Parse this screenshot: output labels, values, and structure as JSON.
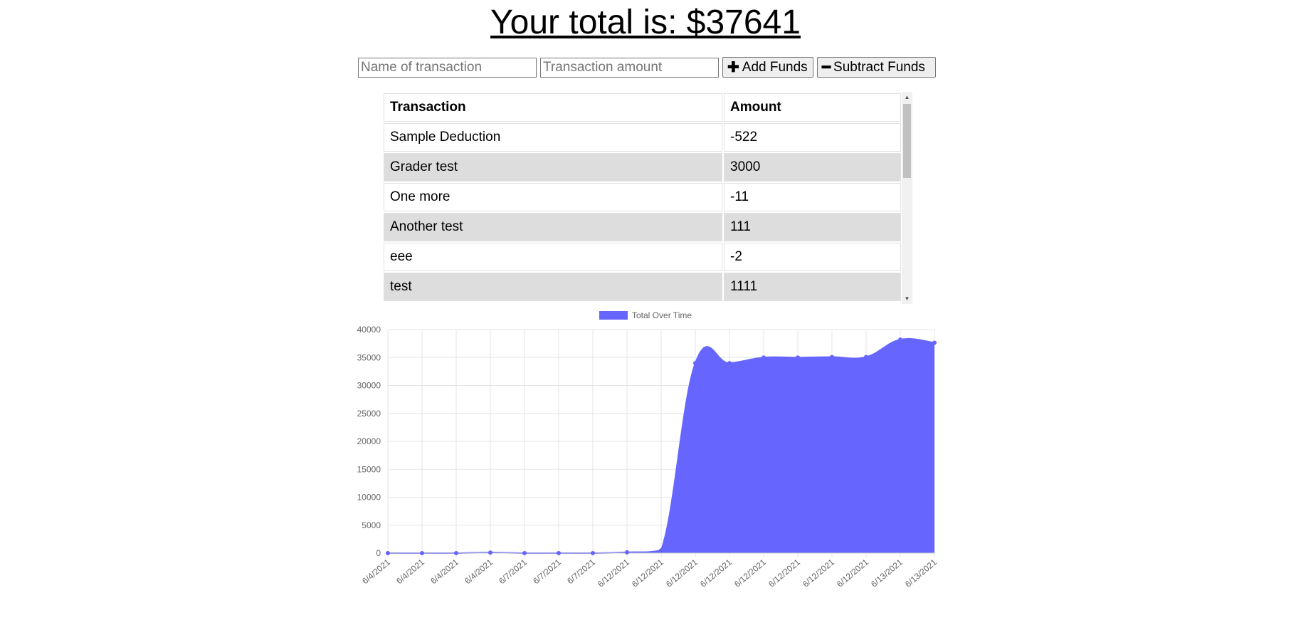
{
  "header": {
    "total_label": "Your total is: $",
    "total_value": "37641"
  },
  "form": {
    "name_placeholder": "Name of transaction",
    "amount_placeholder": "Transaction amount",
    "add_label": "Add Funds",
    "add_icon": "plus-icon",
    "subtract_label": "Subtract Funds",
    "subtract_icon": "minus-icon"
  },
  "table": {
    "headers": [
      "Transaction",
      "Amount"
    ],
    "rows": [
      {
        "name": "Sample Deduction",
        "amount": "-522"
      },
      {
        "name": "Grader test",
        "amount": "3000"
      },
      {
        "name": "One more",
        "amount": "-11"
      },
      {
        "name": "Another test",
        "amount": "111"
      },
      {
        "name": "eee",
        "amount": "-2"
      },
      {
        "name": "test",
        "amount": "1111"
      }
    ]
  },
  "chart_data": {
    "type": "area",
    "legend": "Total Over Time",
    "legend_position": "top",
    "fill_color": "#6666ff",
    "grid": true,
    "ylim": [
      0,
      40000
    ],
    "yticks": [
      0,
      5000,
      10000,
      15000,
      20000,
      25000,
      30000,
      35000,
      40000
    ],
    "x": [
      "6/4/2021",
      "6/4/2021",
      "6/4/2021",
      "6/4/2021",
      "6/7/2021",
      "6/7/2021",
      "6/7/2021",
      "6/12/2021",
      "6/12/2021",
      "6/12/2021",
      "6/12/2021",
      "6/12/2021",
      "6/12/2021",
      "6/12/2021",
      "6/12/2021",
      "6/13/2021",
      "6/13/2021"
    ],
    "series": [
      {
        "name": "Total Over Time",
        "values": [
          0,
          0,
          0,
          100,
          0,
          0,
          0,
          150,
          500,
          34000,
          34000,
          35000,
          35000,
          35100,
          35100,
          38200,
          37641
        ]
      }
    ]
  }
}
